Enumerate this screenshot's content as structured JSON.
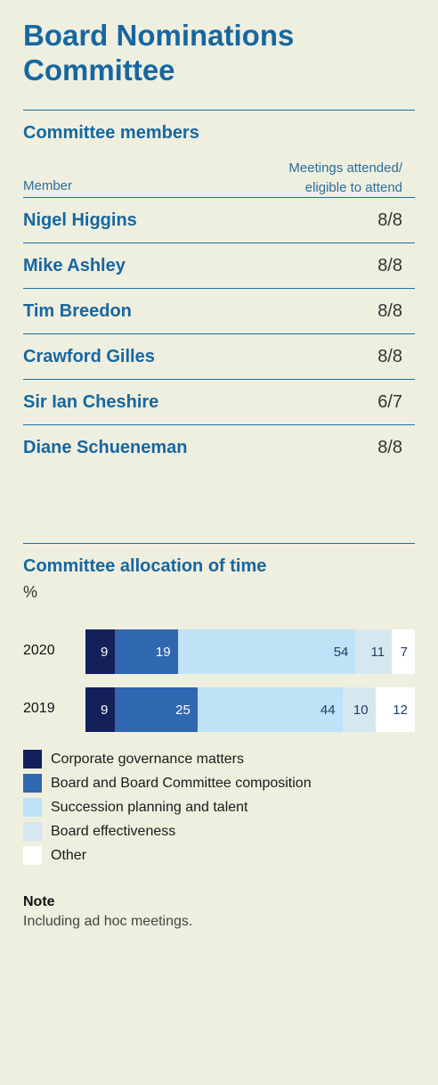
{
  "title": "Board Nominations Committee",
  "members_section": {
    "heading": "Committee members",
    "col_member": "Member",
    "col_meetings_line1": "Meetings attended/",
    "col_meetings_line2": "eligible to attend",
    "rows": [
      {
        "name": "Nigel Higgins",
        "attendance": "8/8"
      },
      {
        "name": "Mike Ashley",
        "attendance": "8/8"
      },
      {
        "name": "Tim Breedon",
        "attendance": "8/8"
      },
      {
        "name": "Crawford Gilles",
        "attendance": "8/8"
      },
      {
        "name": "Sir Ian Cheshire",
        "attendance": "6/7"
      },
      {
        "name": "Diane Schueneman",
        "attendance": "8/8"
      }
    ]
  },
  "allocation_section": {
    "heading": "Committee allocation of time",
    "unit": "%"
  },
  "chart_data": {
    "type": "bar",
    "orientation": "horizontal-stacked",
    "title": "Committee allocation of time",
    "unit": "%",
    "categories": [
      "2020",
      "2019"
    ],
    "series": [
      {
        "name": "Corporate governance matters",
        "color": "#14205a",
        "text_color": "#ffffff",
        "values": [
          9,
          9
        ]
      },
      {
        "name": "Board and Board Committee composition",
        "color": "#2f67b0",
        "text_color": "#ffffff",
        "values": [
          19,
          25
        ]
      },
      {
        "name": "Succession planning and talent",
        "color": "#bfe2f6",
        "text_color": "#1f3f66",
        "values": [
          54,
          44
        ]
      },
      {
        "name": "Board effectiveness",
        "color": "#d7e7ef",
        "text_color": "#1f3f66",
        "values": [
          11,
          10
        ]
      },
      {
        "name": "Other",
        "color": "#ffffff",
        "text_color": "#1f3f66",
        "values": [
          7,
          12
        ]
      }
    ],
    "total": 100
  },
  "note": {
    "heading": "Note",
    "text": "Including ad hoc meetings."
  }
}
